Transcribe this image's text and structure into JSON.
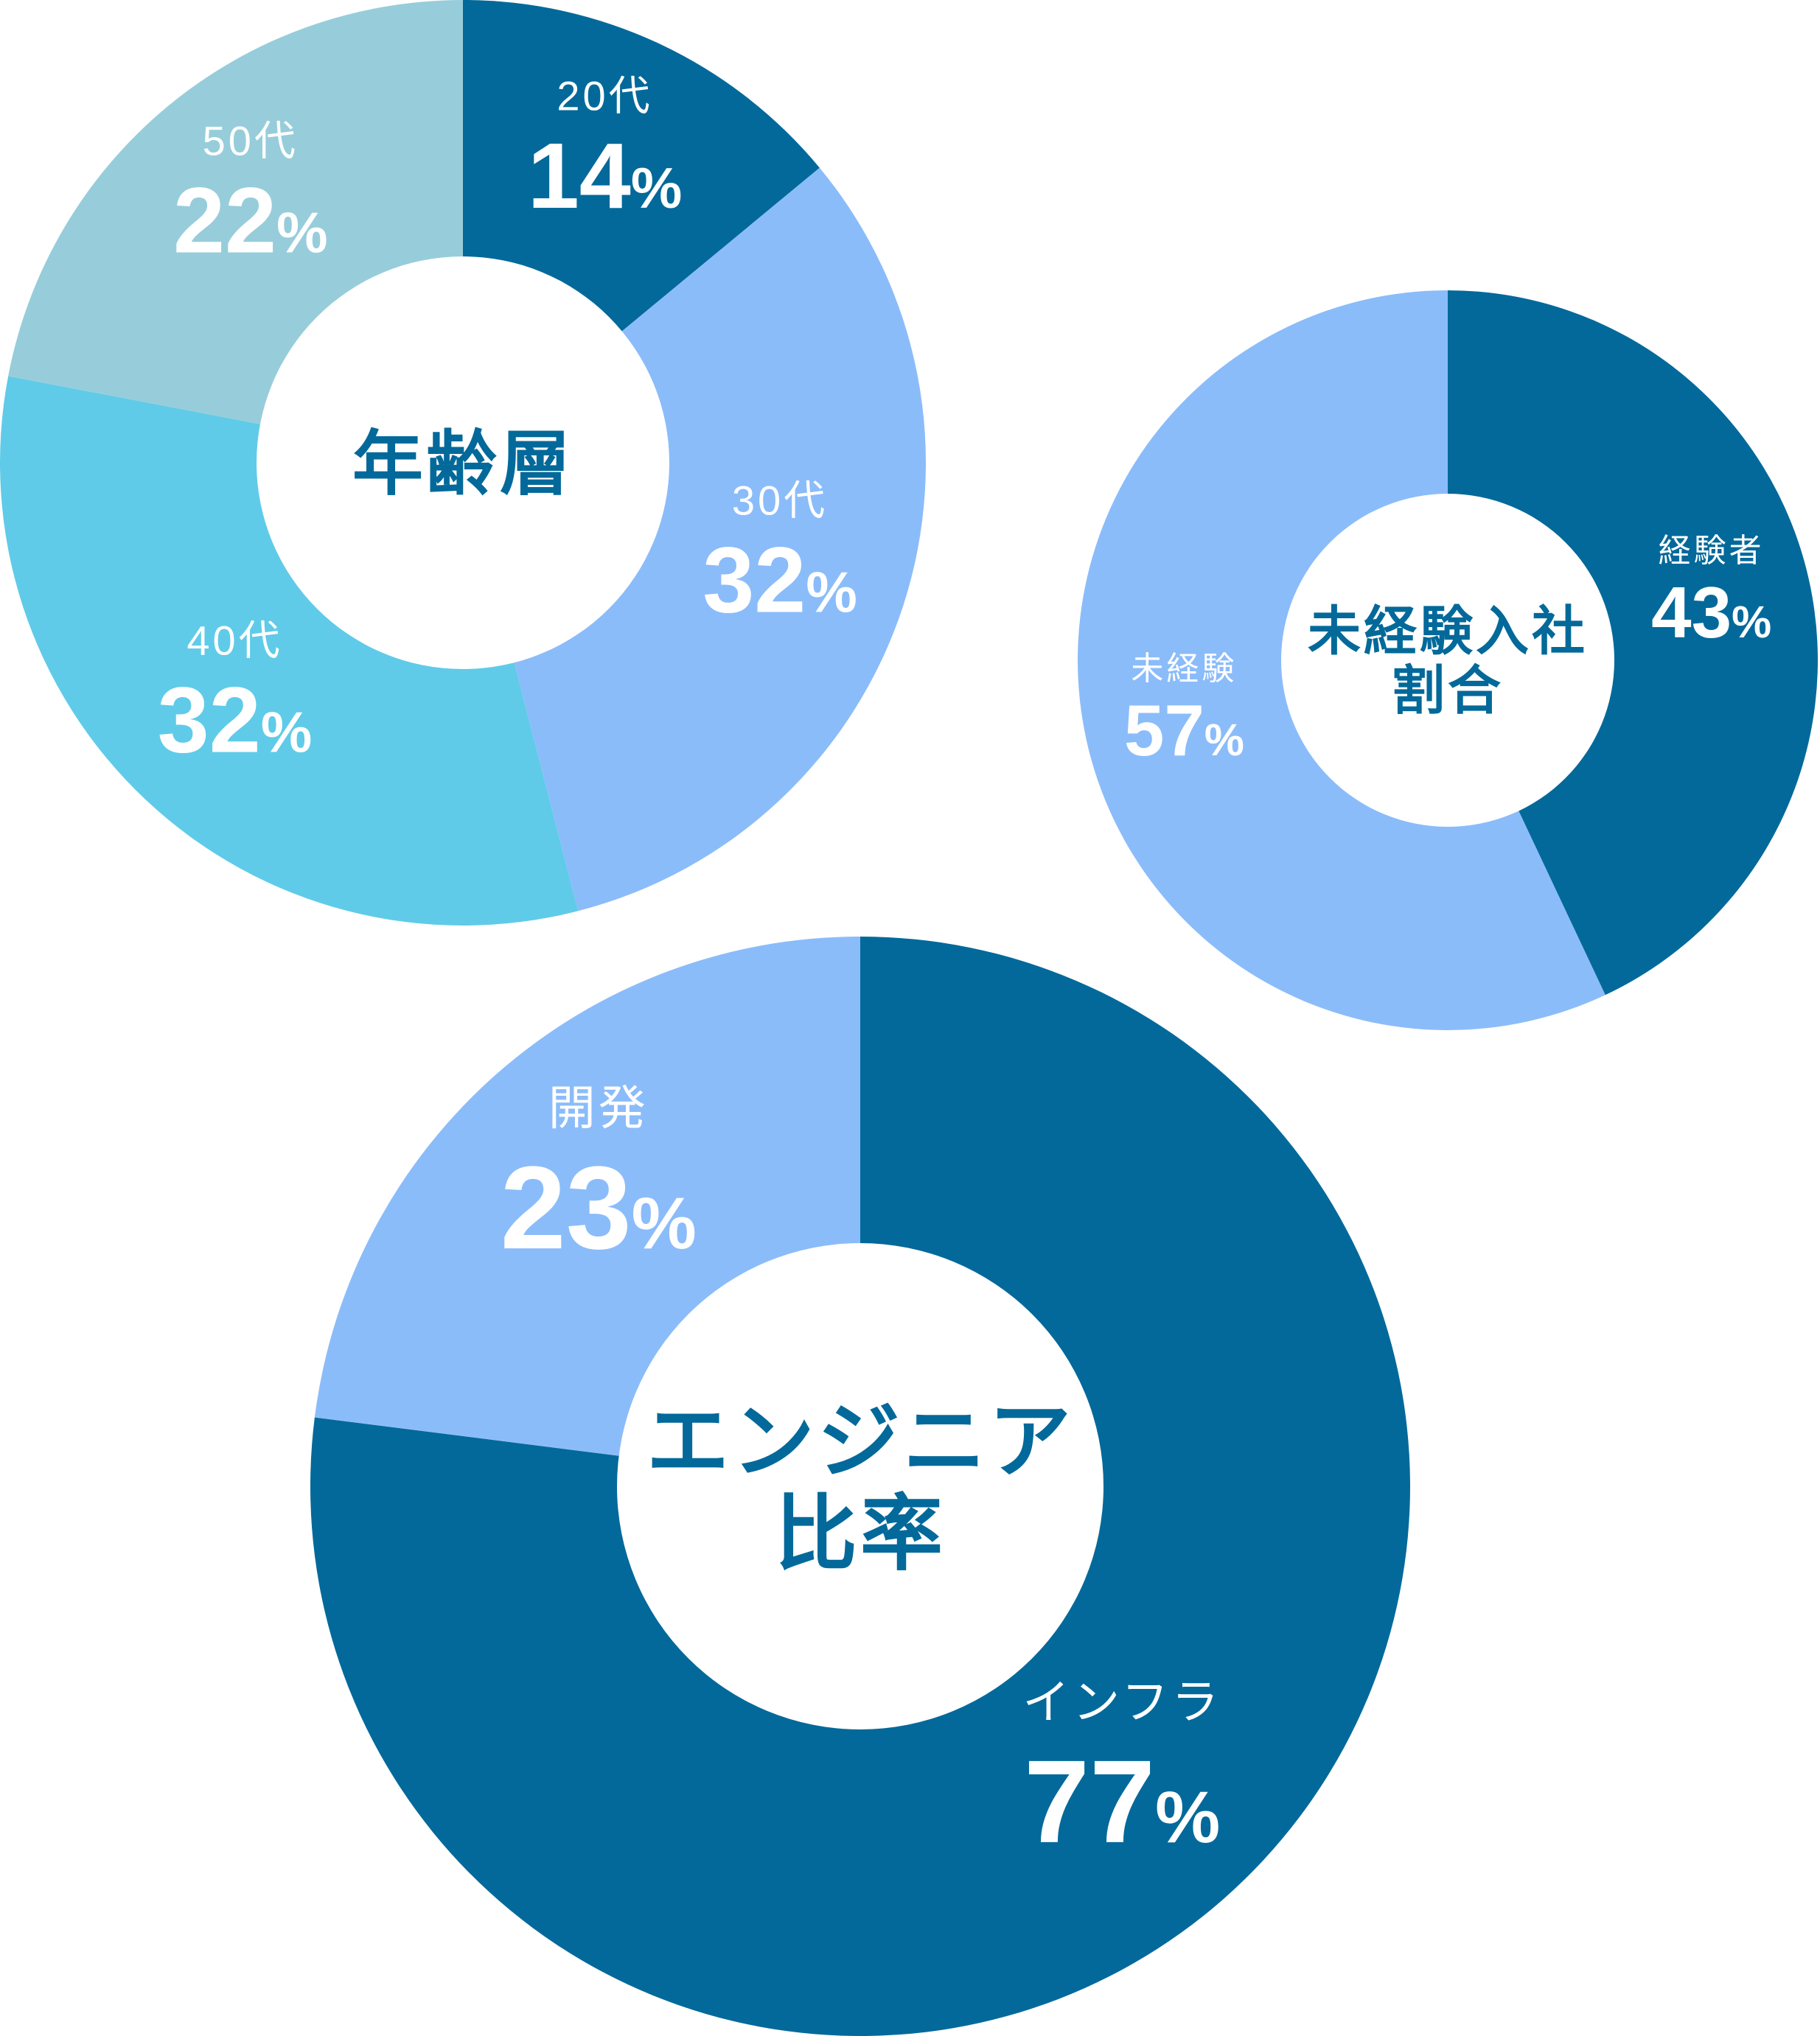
{
  "chart_data": [
    {
      "type": "pie",
      "title": "年齢層",
      "categories": [
        "20代",
        "30代",
        "40代",
        "50代"
      ],
      "values": [
        14,
        32,
        32,
        22
      ],
      "value_labels": [
        "14",
        "32",
        "32",
        "22"
      ],
      "unit": "%",
      "colors": [
        "#03699a",
        "#8bbcfa",
        "#5fcbe8",
        "#97cdda"
      ]
    },
    {
      "type": "pie",
      "title": "未経験入社割合",
      "title_lines": [
        "未経験入社",
        "割合"
      ],
      "categories": [
        "経験者",
        "未経験"
      ],
      "values": [
        43,
        57
      ],
      "value_labels": [
        "43",
        "57"
      ],
      "unit": "%",
      "colors": [
        "#03699a",
        "#8bbcfa"
      ]
    },
    {
      "type": "pie",
      "title": "エンジニア比率",
      "title_lines": [
        "エンジニア",
        "比率"
      ],
      "categories": [
        "インフラ",
        "開発"
      ],
      "values": [
        77,
        23
      ],
      "value_labels": [
        "77",
        "23"
      ],
      "unit": "%",
      "colors": [
        "#03699a",
        "#8bbcfa"
      ]
    }
  ]
}
